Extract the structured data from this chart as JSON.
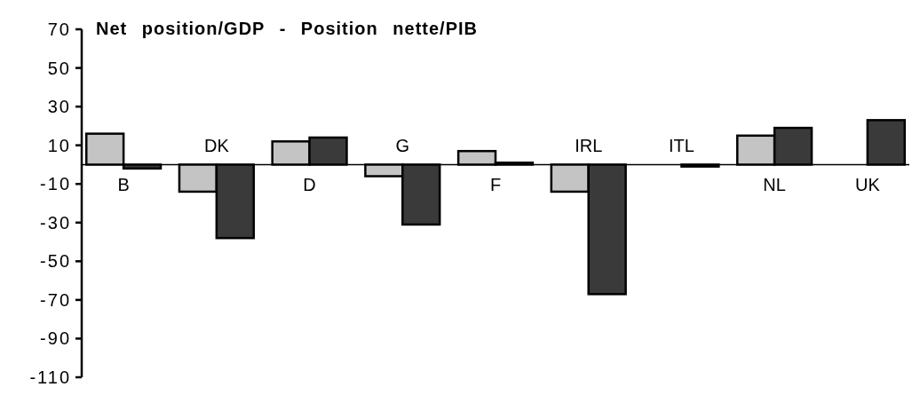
{
  "chart_data": {
    "type": "bar",
    "title": "Net position/GDP - Position nette/PIB",
    "categories": [
      "B",
      "DK",
      "D",
      "G",
      "F",
      "IRL",
      "ITL",
      "NL",
      "UK"
    ],
    "series": [
      {
        "color": "#c4c4c4",
        "values": [
          16,
          -14,
          12,
          -6,
          7,
          -14,
          0,
          15,
          0
        ]
      },
      {
        "color": "#3a3a3a",
        "values": [
          -2,
          -38,
          14,
          -31,
          1,
          -67,
          -1,
          19,
          23
        ]
      }
    ],
    "ylim": [
      -110,
      70
    ],
    "yticks": [
      70,
      50,
      30,
      10,
      -10,
      -30,
      -50,
      -70,
      -90,
      -110
    ],
    "grid": false
  }
}
